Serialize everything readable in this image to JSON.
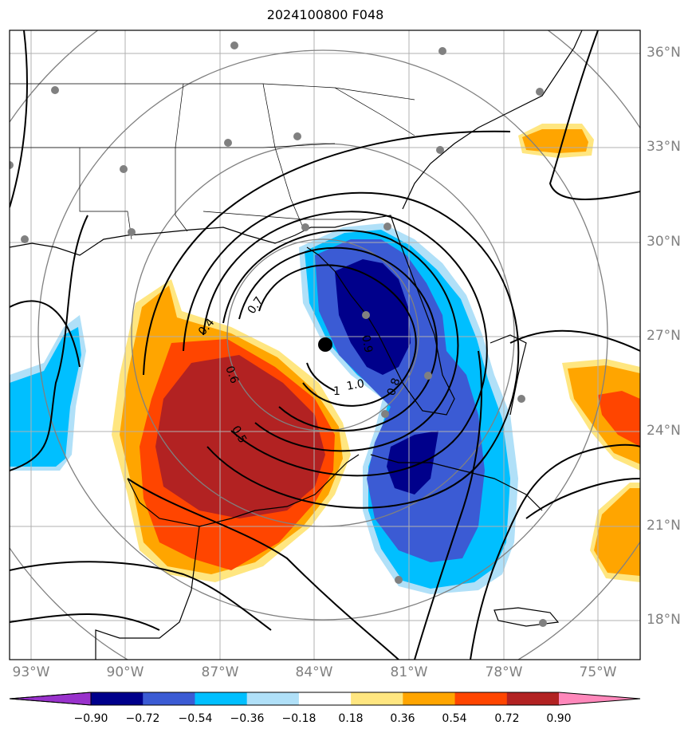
{
  "title": "2024100800 F048",
  "map": {
    "projection": "polar stereographic style, centered on storm",
    "region": "Gulf of Mexico / Florida / Southeast US",
    "lat_labels": [
      "36°N",
      "33°N",
      "30°N",
      "27°N",
      "24°N",
      "21°N",
      "18°N"
    ],
    "lon_labels": [
      "93°W",
      "90°W",
      "87°W",
      "84°W",
      "81°W",
      "78°W",
      "75°W"
    ],
    "storm_center": {
      "lat": 26.8,
      "lon": -83.6
    },
    "contour_labels": [
      "0.4",
      "0.7",
      "0.6",
      "0.5",
      "0.8",
      "1.0",
      "0.9",
      "1"
    ],
    "colors": {
      "gridline": "#b0b0b0",
      "range_rings": "#808080",
      "station_dots": "#808080"
    }
  },
  "colorbar": {
    "ticks": [
      "−0.90",
      "−0.72",
      "−0.54",
      "−0.36",
      "−0.18",
      "0.18",
      "0.36",
      "0.54",
      "0.72",
      "0.90"
    ],
    "colors": [
      "#9932cc",
      "#00008b",
      "#3b5bd4",
      "#00bfff",
      "#b0e0f8",
      "#ffffff",
      "#ffe680",
      "#ffa500",
      "#ff4500",
      "#b22222",
      "#ff88bb"
    ]
  }
}
